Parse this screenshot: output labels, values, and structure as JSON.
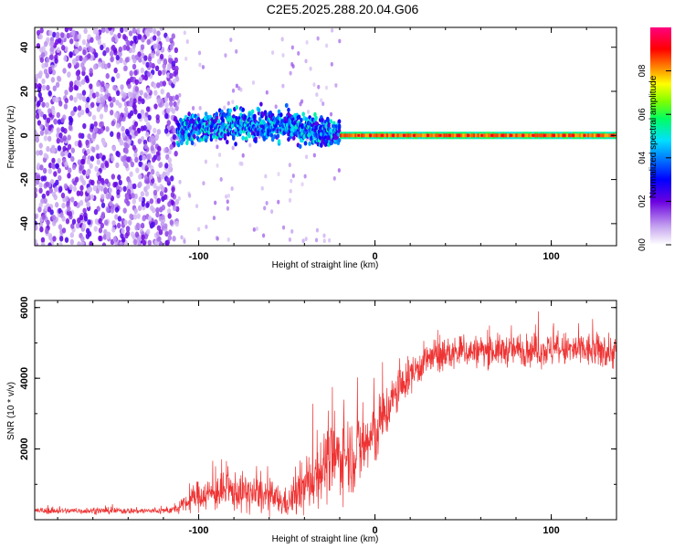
{
  "title": "C2E5.2025.288.20.04.G06",
  "chart_data": [
    {
      "type": "heatmap",
      "title": "C2E5.2025.288.20.04.G06",
      "xlabel": "Height of straight line (km)",
      "ylabel": "Frequency (Hz)",
      "xlim": [
        -193,
        137
      ],
      "ylim": [
        -50,
        49
      ],
      "xticks": [
        -100,
        0,
        100
      ],
      "xtick_labels": [
        "-100",
        "0",
        "100"
      ],
      "yticks": [
        -40,
        -20,
        0,
        20,
        40
      ],
      "ytick_labels": [
        "-40",
        "-20",
        "0",
        "20",
        "40"
      ],
      "colorbar": {
        "label": "Normalized spectral amplitude",
        "range": [
          0,
          1
        ],
        "ticks": [
          0.0,
          0.2,
          0.4,
          0.6,
          0.8
        ],
        "tick_labels": [
          "0.0",
          "0.2",
          "0.4",
          "0.6",
          "0.8"
        ]
      },
      "features": {
        "noise_region_x": [
          -193,
          -112
        ],
        "signal_band_start_x": -112,
        "strong_line_start_x": -20,
        "line_frequency": 0
      }
    },
    {
      "type": "line",
      "xlabel": "Height of straight line (km)",
      "ylabel": "SNR (10 * v/v)",
      "xlim": [
        -193,
        137
      ],
      "ylim": [
        0,
        6200
      ],
      "xticks": [
        -100,
        0,
        100
      ],
      "xtick_labels": [
        "-100",
        "0",
        "100"
      ],
      "yticks": [
        2000,
        4000,
        6000
      ],
      "ytick_labels": [
        "2000",
        "4000",
        "6000"
      ],
      "color": "#ee3333",
      "profile_x": [
        -193,
        -120,
        -112,
        -100,
        -80,
        -60,
        -50,
        -40,
        -30,
        -20,
        -10,
        0,
        10,
        20,
        30,
        50,
        80,
        110,
        137
      ],
      "profile_y": [
        250,
        250,
        300,
        700,
        800,
        650,
        450,
        900,
        1500,
        1800,
        1900,
        2400,
        3400,
        4100,
        4550,
        4750,
        4800,
        4800,
        4750
      ],
      "profile_spread": [
        80,
        80,
        120,
        400,
        500,
        450,
        350,
        700,
        900,
        1000,
        1000,
        900,
        600,
        450,
        450,
        400,
        400,
        450,
        450
      ]
    }
  ]
}
